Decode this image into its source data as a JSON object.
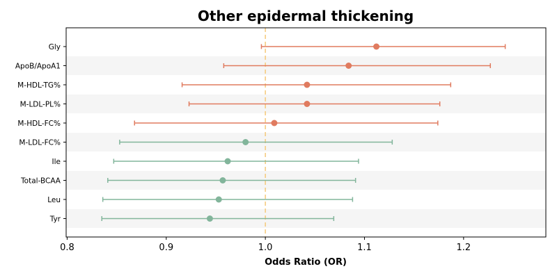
{
  "chart_data": {
    "type": "forest",
    "title": "Other epidermal thickening",
    "xlabel": "Odds Ratio (OR)",
    "xlim": [
      0.799,
      1.283
    ],
    "xticks": [
      0.8,
      0.9,
      1.0,
      1.1,
      1.2
    ],
    "xtick_labels": [
      "0.8",
      "0.9",
      "1.0",
      "1.1",
      "1.2"
    ],
    "reference_line": 1.0,
    "reference_color": "#f5c97a",
    "grid": false,
    "colors": {
      "positive": "#e07b5f",
      "negative": "#82b59b",
      "band": "#f5f5f5"
    },
    "categories": [
      "Gly",
      "ApoB/ApoA1",
      "M-HDL-TG%",
      "M-LDL-PL%",
      "M-HDL-FC%",
      "M-LDL-FC%",
      "Ile",
      "Total-BCAA",
      "Leu",
      "Tyr"
    ],
    "or": [
      1.112,
      1.084,
      1.042,
      1.042,
      1.009,
      0.98,
      0.962,
      0.957,
      0.953,
      0.944
    ],
    "lower": [
      0.996,
      0.958,
      0.916,
      0.923,
      0.868,
      0.853,
      0.847,
      0.841,
      0.836,
      0.835
    ],
    "upper": [
      1.242,
      1.227,
      1.187,
      1.176,
      1.174,
      1.128,
      1.094,
      1.091,
      1.088,
      1.069
    ]
  }
}
